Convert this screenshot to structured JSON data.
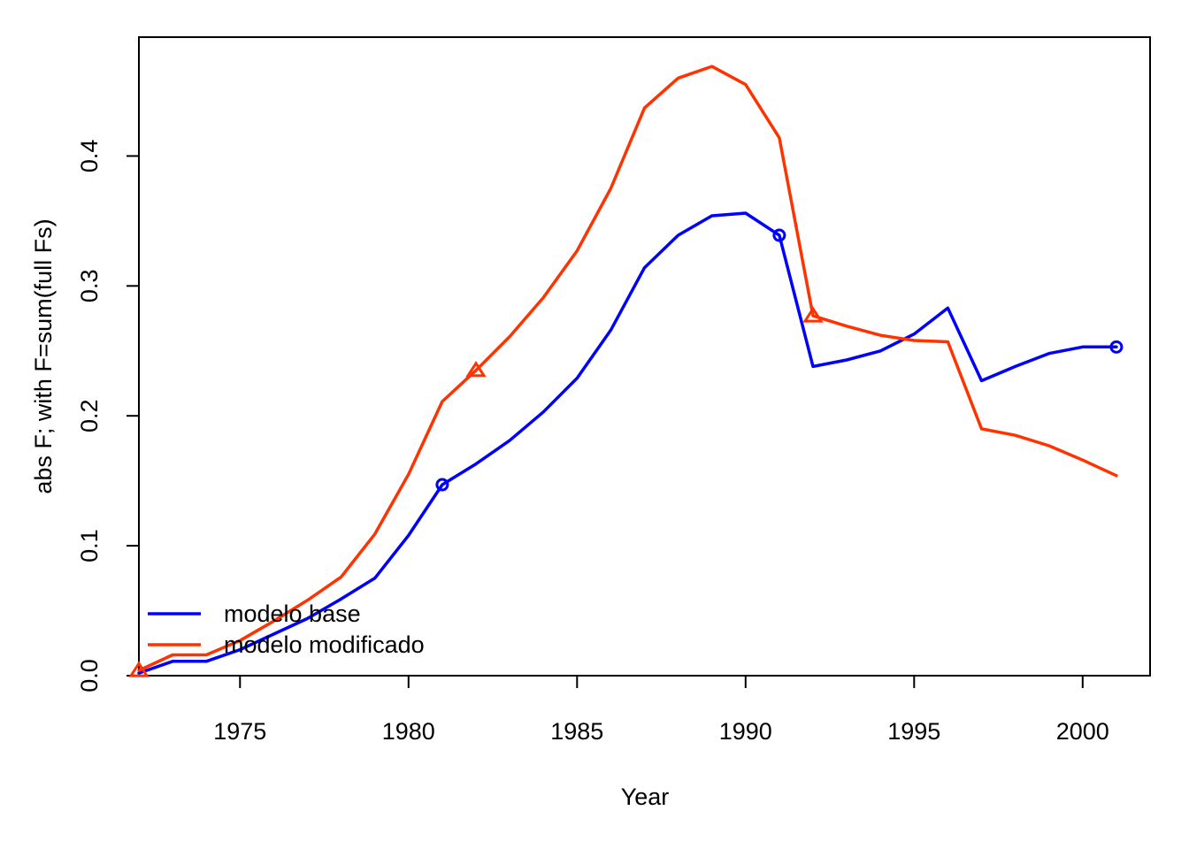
{
  "chart_data": {
    "type": "line",
    "title": "",
    "xlabel": "Year",
    "ylabel": "abs F; with F=sum(full Fs)",
    "xlim": [
      1972,
      2002
    ],
    "ylim": [
      0,
      0.48
    ],
    "x_ticks": [
      1975,
      1980,
      1985,
      1990,
      1995,
      2000
    ],
    "y_ticks": [
      0.0,
      0.1,
      0.2,
      0.3,
      0.4
    ],
    "y_tick_labels": [
      "0.0",
      "0.1",
      "0.2",
      "0.3",
      "0.4"
    ],
    "grid": false,
    "legend_position": "bottom-left",
    "x": [
      1972,
      1973,
      1974,
      1975,
      1976,
      1977,
      1978,
      1979,
      1980,
      1981,
      1982,
      1983,
      1984,
      1985,
      1986,
      1987,
      1988,
      1989,
      1990,
      1991,
      1992,
      1993,
      1994,
      1995,
      1996,
      1997,
      1998,
      1999,
      2000,
      2001
    ],
    "series": [
      {
        "name": "modelo base",
        "color": "#0000FF",
        "marker": "circle",
        "marker_x": [
          1981,
          1991,
          2001
        ],
        "values": [
          0.002,
          0.011,
          0.011,
          0.02,
          0.032,
          0.044,
          0.059,
          0.075,
          0.108,
          0.147,
          0.163,
          0.181,
          0.203,
          0.229,
          0.266,
          0.314,
          0.339,
          0.354,
          0.356,
          0.339,
          0.238,
          0.243,
          0.25,
          0.263,
          0.283,
          0.227,
          0.238,
          0.248,
          0.253,
          0.253
        ]
      },
      {
        "name": "modelo modificado",
        "color": "#FF3300",
        "marker": "triangle",
        "marker_x": [
          1972,
          1982,
          1992
        ],
        "values": [
          0.004,
          0.016,
          0.016,
          0.027,
          0.042,
          0.058,
          0.076,
          0.109,
          0.155,
          0.211,
          0.235,
          0.261,
          0.291,
          0.327,
          0.375,
          0.437,
          0.46,
          0.469,
          0.455,
          0.414,
          0.277,
          0.269,
          0.262,
          0.258,
          0.257,
          0.19,
          0.185,
          0.177,
          0.166,
          0.154
        ]
      }
    ]
  }
}
